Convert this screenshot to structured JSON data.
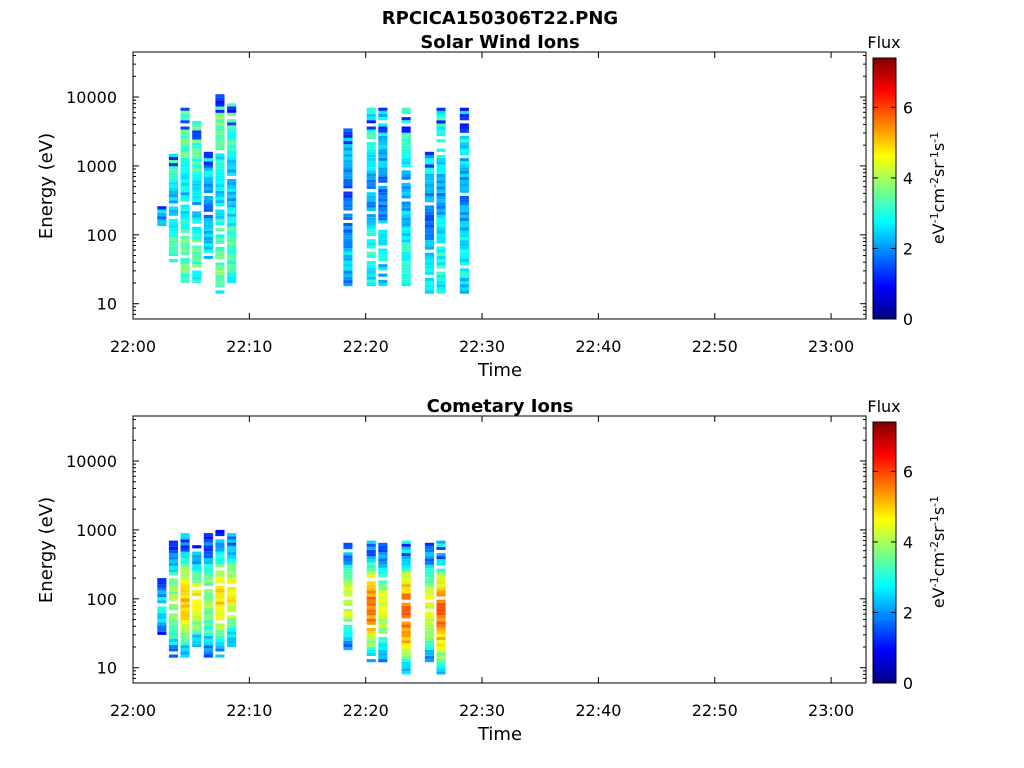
{
  "figure": {
    "title": "RPCICA150306T22.PNG"
  },
  "chart_data": [
    {
      "type": "heatmap",
      "title": "Solar Wind Ions",
      "xlabel": "Time",
      "ylabel": "Energy (eV)",
      "x_ticks": [
        "22:00",
        "22:10",
        "22:20",
        "22:30",
        "22:40",
        "22:50",
        "23:00"
      ],
      "xlim": [
        "22:00",
        "23:03"
      ],
      "y_scale": "log",
      "ylim": [
        6,
        45000
      ],
      "y_ticks": [
        "10",
        "100",
        "1000",
        "10000"
      ],
      "colorbar": {
        "label": "Flux",
        "units": "eV-1cm-2sr-1s-1",
        "range": [
          0,
          7.4
        ],
        "ticks": [
          "0",
          "2",
          "4",
          "6"
        ],
        "colormap": "jet"
      },
      "columns": [
        {
          "t": "22:02",
          "emin": 120,
          "emax": 260,
          "level": 2.6
        },
        {
          "t": "22:03",
          "emin": 40,
          "emax": 1500,
          "level": 3.2
        },
        {
          "t": "22:04",
          "emin": 20,
          "emax": 7000,
          "level": 3.6
        },
        {
          "t": "22:05",
          "emin": 20,
          "emax": 4500,
          "level": 3.4
        },
        {
          "t": "22:06",
          "emin": 40,
          "emax": 1600,
          "level": 2.6
        },
        {
          "t": "22:07",
          "emin": 14,
          "emax": 11000,
          "level": 3.5
        },
        {
          "t": "22:08",
          "emin": 20,
          "emax": 9000,
          "level": 3.3
        },
        {
          "t": "22:18",
          "emin": 18,
          "emax": 3500,
          "level": 2.3
        },
        {
          "t": "22:20",
          "emin": 18,
          "emax": 7000,
          "level": 3.0
        },
        {
          "t": "22:21",
          "emin": 18,
          "emax": 7000,
          "level": 2.6
        },
        {
          "t": "22:23",
          "emin": 18,
          "emax": 7000,
          "level": 3.0
        },
        {
          "t": "22:25",
          "emin": 14,
          "emax": 1600,
          "level": 2.6
        },
        {
          "t": "22:26",
          "emin": 14,
          "emax": 7000,
          "level": 3.0
        },
        {
          "t": "22:28",
          "emin": 14,
          "emax": 7000,
          "level": 2.8
        }
      ]
    },
    {
      "type": "heatmap",
      "title": "Cometary Ions",
      "xlabel": "Time",
      "ylabel": "Energy (eV)",
      "x_ticks": [
        "22:00",
        "22:10",
        "22:20",
        "22:30",
        "22:40",
        "22:50",
        "23:00"
      ],
      "xlim": [
        "22:00",
        "23:03"
      ],
      "y_scale": "log",
      "ylim": [
        6,
        45000
      ],
      "y_ticks": [
        "10",
        "100",
        "1000",
        "10000"
      ],
      "colorbar": {
        "label": "Flux",
        "units": "eV-1cm-2sr-1s-1",
        "range": [
          0,
          7.4
        ],
        "ticks": [
          "0",
          "2",
          "4",
          "6"
        ],
        "colormap": "jet"
      },
      "columns": [
        {
          "t": "22:02",
          "emin": 30,
          "emax": 200,
          "level": 2.8
        },
        {
          "t": "22:03",
          "emin": 14,
          "emax": 700,
          "level": 4.0
        },
        {
          "t": "22:04",
          "emin": 14,
          "emax": 900,
          "level": 5.0
        },
        {
          "t": "22:05",
          "emin": 20,
          "emax": 600,
          "level": 4.6
        },
        {
          "t": "22:06",
          "emin": 14,
          "emax": 900,
          "level": 3.8
        },
        {
          "t": "22:07",
          "emin": 14,
          "emax": 1000,
          "level": 4.8
        },
        {
          "t": "22:08",
          "emin": 20,
          "emax": 900,
          "level": 4.6
        },
        {
          "t": "22:18",
          "emin": 18,
          "emax": 650,
          "level": 4.4
        },
        {
          "t": "22:20",
          "emin": 12,
          "emax": 700,
          "level": 5.6
        },
        {
          "t": "22:21",
          "emin": 12,
          "emax": 650,
          "level": 4.4
        },
        {
          "t": "22:23",
          "emin": 8,
          "emax": 700,
          "level": 5.8
        },
        {
          "t": "22:25",
          "emin": 12,
          "emax": 650,
          "level": 4.4
        },
        {
          "t": "22:26",
          "emin": 8,
          "emax": 700,
          "level": 5.6
        }
      ]
    }
  ]
}
